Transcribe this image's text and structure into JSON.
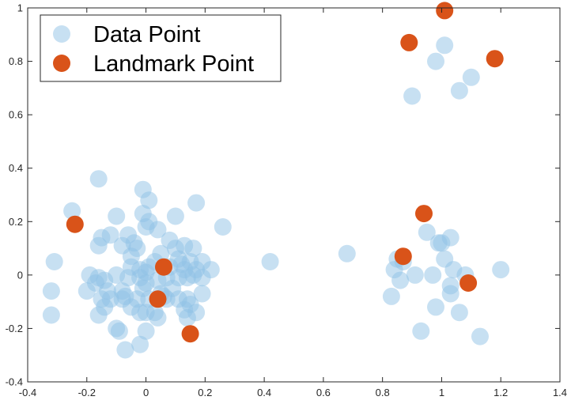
{
  "chart_data": {
    "type": "scatter",
    "xlim": [
      -0.4,
      1.4
    ],
    "ylim": [
      -0.4,
      1.0
    ],
    "x_ticks": [
      "-0.4",
      "-0.2",
      "0",
      "0.2",
      "0.4",
      "0.6",
      "0.8",
      "1",
      "1.2",
      "1.4"
    ],
    "y_ticks": [
      "-0.4",
      "-0.2",
      "0",
      "0.2",
      "0.4",
      "0.6",
      "0.8",
      "1"
    ],
    "grid": false,
    "legend_placement": "top-left",
    "series": [
      {
        "name": "Data Point",
        "color": "#8fc2e6",
        "opacity": 0.5,
        "points": [
          [
            -0.16,
            0.36
          ],
          [
            -0.01,
            0.32
          ],
          [
            -0.25,
            0.24
          ],
          [
            0.17,
            0.27
          ],
          [
            0.26,
            0.18
          ],
          [
            -0.1,
            0.22
          ],
          [
            -0.01,
            0.23
          ],
          [
            0.01,
            0.28
          ],
          [
            0.1,
            0.22
          ],
          [
            -0.15,
            0.14
          ],
          [
            -0.12,
            0.15
          ],
          [
            -0.06,
            0.15
          ],
          [
            -0.04,
            0.12
          ],
          [
            -0.08,
            0.11
          ],
          [
            -0.03,
            0.1
          ],
          [
            -0.16,
            0.11
          ],
          [
            0.04,
            0.17
          ],
          [
            0.0,
            0.18
          ],
          [
            0.01,
            0.2
          ],
          [
            0.08,
            0.13
          ],
          [
            0.13,
            0.11
          ],
          [
            0.16,
            0.1
          ],
          [
            0.1,
            0.1
          ],
          [
            0.05,
            0.08
          ],
          [
            -0.31,
            0.05
          ],
          [
            -0.05,
            0.07
          ],
          [
            0.11,
            0.06
          ],
          [
            0.12,
            0.04
          ],
          [
            0.15,
            0.05
          ],
          [
            0.19,
            0.05
          ],
          [
            0.17,
            0.02
          ],
          [
            0.13,
            0.02
          ],
          [
            0.08,
            0.03
          ],
          [
            0.03,
            0.05
          ],
          [
            0.0,
            0.01
          ],
          [
            -0.02,
            0.02
          ],
          [
            -0.05,
            0.03
          ],
          [
            0.01,
            0.03
          ],
          [
            0.22,
            0.02
          ],
          [
            -0.1,
            0.0
          ],
          [
            -0.19,
            0.0
          ],
          [
            -0.16,
            -0.01
          ],
          [
            -0.17,
            -0.03
          ],
          [
            -0.14,
            -0.02
          ],
          [
            -0.06,
            -0.01
          ],
          [
            -0.02,
            -0.01
          ],
          [
            0.0,
            -0.03
          ],
          [
            0.04,
            -0.02
          ],
          [
            0.07,
            -0.01
          ],
          [
            0.11,
            -0.01
          ],
          [
            0.14,
            -0.01
          ],
          [
            0.16,
            0.0
          ],
          [
            0.19,
            -0.01
          ],
          [
            -0.32,
            -0.06
          ],
          [
            -0.2,
            -0.06
          ],
          [
            -0.13,
            -0.06
          ],
          [
            -0.08,
            -0.06
          ],
          [
            -0.01,
            -0.05
          ],
          [
            0.05,
            -0.07
          ],
          [
            0.09,
            -0.05
          ],
          [
            0.19,
            -0.07
          ],
          [
            -0.15,
            -0.09
          ],
          [
            -0.12,
            -0.09
          ],
          [
            -0.08,
            -0.09
          ],
          [
            -0.07,
            -0.08
          ],
          [
            -0.03,
            -0.09
          ],
          [
            0.01,
            -0.09
          ],
          [
            0.06,
            -0.08
          ],
          [
            0.07,
            -0.09
          ],
          [
            0.11,
            -0.09
          ],
          [
            0.14,
            -0.09
          ],
          [
            0.15,
            -0.11
          ],
          [
            -0.14,
            -0.12
          ],
          [
            -0.05,
            -0.12
          ],
          [
            0.03,
            -0.14
          ],
          [
            0.04,
            -0.16
          ],
          [
            0.13,
            -0.13
          ],
          [
            0.17,
            -0.14
          ],
          [
            -0.32,
            -0.15
          ],
          [
            -0.16,
            -0.15
          ],
          [
            -0.02,
            -0.14
          ],
          [
            0.0,
            -0.14
          ],
          [
            0.14,
            -0.16
          ],
          [
            -0.1,
            -0.2
          ],
          [
            -0.09,
            -0.21
          ],
          [
            0.0,
            -0.21
          ],
          [
            -0.02,
            -0.26
          ],
          [
            -0.07,
            -0.28
          ],
          [
            0.42,
            0.05
          ],
          [
            0.68,
            0.08
          ],
          [
            0.85,
            0.06
          ],
          [
            0.87,
            0.05
          ],
          [
            0.84,
            0.02
          ],
          [
            0.86,
            -0.02
          ],
          [
            0.91,
            0.0
          ],
          [
            0.95,
            0.16
          ],
          [
            0.99,
            0.12
          ],
          [
            1.0,
            0.12
          ],
          [
            1.03,
            0.14
          ],
          [
            1.01,
            0.06
          ],
          [
            1.04,
            0.02
          ],
          [
            0.97,
            0.0
          ],
          [
            1.03,
            -0.04
          ],
          [
            1.03,
            -0.07
          ],
          [
            1.08,
            0.0
          ],
          [
            1.2,
            0.02
          ],
          [
            0.83,
            -0.08
          ],
          [
            0.98,
            -0.12
          ],
          [
            1.06,
            -0.14
          ],
          [
            0.93,
            -0.21
          ],
          [
            1.13,
            -0.23
          ],
          [
            0.9,
            0.67
          ],
          [
            0.98,
            0.8
          ],
          [
            1.01,
            0.86
          ],
          [
            1.06,
            0.69
          ],
          [
            1.1,
            0.74
          ]
        ]
      },
      {
        "name": "Landmark Point",
        "color": "#d95319",
        "opacity": 1,
        "points": [
          [
            -0.24,
            0.19
          ],
          [
            0.06,
            0.03
          ],
          [
            0.04,
            -0.09
          ],
          [
            0.15,
            -0.22
          ],
          [
            0.87,
            0.07
          ],
          [
            0.94,
            0.23
          ],
          [
            1.09,
            -0.03
          ],
          [
            0.89,
            0.87
          ],
          [
            1.01,
            0.99
          ],
          [
            1.18,
            0.81
          ]
        ]
      }
    ]
  }
}
